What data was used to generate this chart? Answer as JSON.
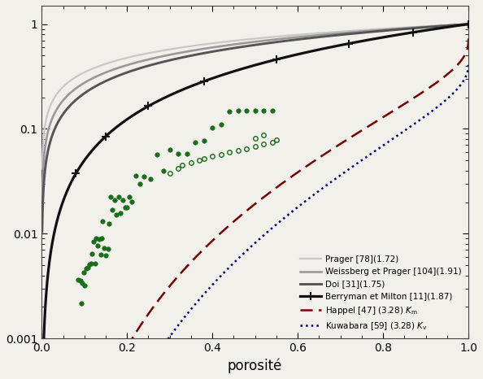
{
  "title": "",
  "xlabel": "porosité",
  "ylabel": "",
  "xlim": [
    0,
    1
  ],
  "ylim": [
    0.001,
    1.5
  ],
  "legend_labels_plain": [
    "Prager [78](1.72)",
    "Weissberg et Prager [104](1.91)",
    "Doi [31](1.75)",
    "Berryman et Milton [11](1.87)",
    "Happel [47] (3.28) $K_{\\mathrm{m}}$",
    "Kuwabara [59] (3.28) $K_{\\mathrm{v}}$"
  ],
  "curve_colors": [
    "#c8c8c8",
    "#999999",
    "#555555",
    "#111111"
  ],
  "curve_linewidths": [
    1.6,
    1.9,
    2.1,
    2.3
  ],
  "happel_color": "#7b0000",
  "kuwabara_color": "#000080",
  "green_color": "#1a6e1a",
  "background_color": "#f2f0eb",
  "ref_color": "#4444bb"
}
